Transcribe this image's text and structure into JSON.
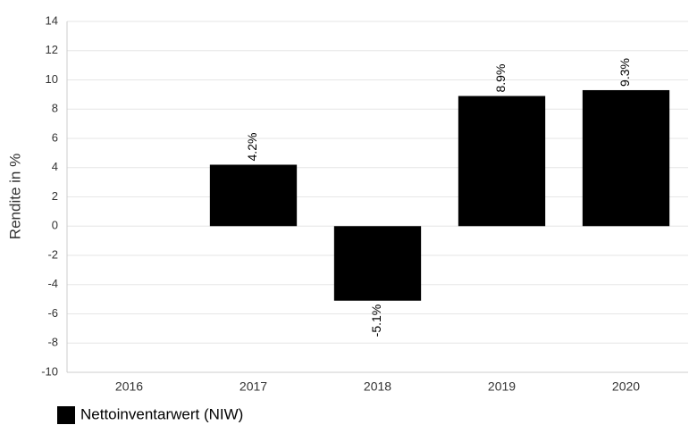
{
  "chart_data": {
    "type": "bar",
    "ylabel": "Rendite in %",
    "categories": [
      "2016",
      "2017",
      "2018",
      "2019",
      "2020"
    ],
    "series": [
      {
        "name": "Nettoinventarwert (NIW)",
        "color": "#000000",
        "values": [
          null,
          4.2,
          -5.1,
          8.9,
          9.3
        ],
        "value_labels": [
          null,
          "4.2%",
          "-5.1%",
          "8.9%",
          "9.3%"
        ]
      }
    ],
    "ylim": [
      -10,
      14
    ],
    "yticks": [
      -10,
      -8,
      -6,
      -4,
      -2,
      0,
      2,
      4,
      6,
      8,
      10,
      12,
      14
    ],
    "grid": true,
    "legend": "bottom-left"
  }
}
